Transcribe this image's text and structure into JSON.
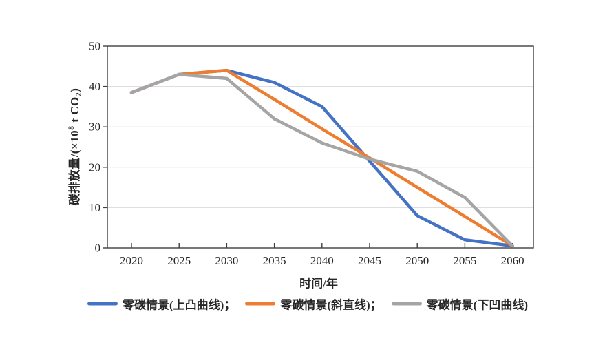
{
  "chart_data": {
    "type": "line",
    "title": "",
    "xlabel": "时间/年",
    "ylabel": "碳排放量/(×10⁸ t CO₂)",
    "ylabel_parts": {
      "prefix": "碳排放量/(×10",
      "sup": "8",
      "mid": " t CO",
      "sub": "2",
      "suffix": ")"
    },
    "x": [
      2020,
      2025,
      2030,
      2035,
      2040,
      2045,
      2050,
      2055,
      2060
    ],
    "x_ticks": [
      2020,
      2025,
      2030,
      2035,
      2040,
      2045,
      2050,
      2055,
      2060
    ],
    "y_ticks": [
      0,
      10,
      20,
      30,
      40,
      50
    ],
    "ylim": [
      0,
      50
    ],
    "grid": "horizontal",
    "legend_position": "bottom",
    "series": [
      {
        "name": "零碳情景(上凸曲线)",
        "color": "#4472C4",
        "values": [
          38.5,
          43,
          44,
          41,
          35,
          21.5,
          8,
          2,
          0.5
        ]
      },
      {
        "name": "零碳情景(斜直线)",
        "color": "#ED7D31",
        "values": [
          38.5,
          43,
          44,
          36.8,
          29.5,
          22.3,
          15,
          7.8,
          0.5
        ]
      },
      {
        "name": "零碳情景(下凹曲线)",
        "color": "#A5A5A5",
        "values": [
          38.5,
          43,
          42,
          32,
          26,
          22,
          19,
          12.5,
          0.5
        ]
      }
    ],
    "legend": [
      {
        "label": "零碳情景(上凸曲线)；",
        "color": "#4472C4"
      },
      {
        "label": "零碳情景(斜直线)；",
        "color": "#ED7D31"
      },
      {
        "label": "零碳情景(下凹曲线)",
        "color": "#A5A5A5"
      }
    ],
    "style": {
      "background": "#ffffff",
      "grid_color": "#d9d9d9",
      "axis_color": "#3f3f3f",
      "text_color": "#262626",
      "line_width": 4.5
    }
  }
}
